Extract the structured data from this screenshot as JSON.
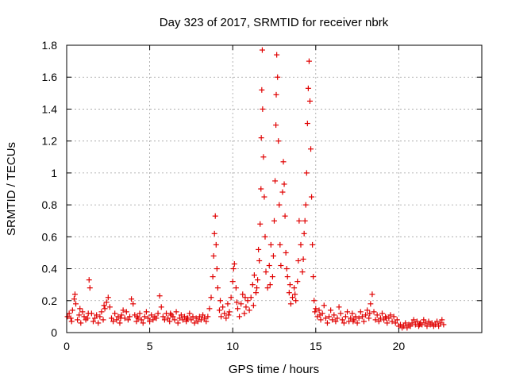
{
  "chart_data": {
    "type": "scatter",
    "title": "Day 323 of 2017, SRMTID for receiver nbrk",
    "xlabel": "GPS time / hours",
    "ylabel": "SRMTID / TECUs",
    "xlim": [
      0,
      25
    ],
    "ylim": [
      0,
      1.8
    ],
    "xticks": [
      0,
      5,
      10,
      15,
      20
    ],
    "xtick_labels": [
      "0",
      "5",
      "10",
      "15",
      "20"
    ],
    "yticks": [
      0,
      0.2,
      0.4,
      0.6,
      0.8,
      1,
      1.2,
      1.4,
      1.6,
      1.8
    ],
    "ytick_labels": [
      "0",
      "0.2",
      "0.4",
      "0.6",
      "0.8",
      "1",
      "1.2",
      "1.4",
      "1.6",
      "1.8"
    ],
    "grid": true,
    "marker": "+",
    "marker_color": "#e00000",
    "series": [
      {
        "name": "SRMTID",
        "points": [
          [
            0.05,
            0.1
          ],
          [
            0.15,
            0.12
          ],
          [
            0.25,
            0.09
          ],
          [
            0.35,
            0.14
          ],
          [
            0.45,
            0.21
          ],
          [
            0.5,
            0.24
          ],
          [
            0.55,
            0.18
          ],
          [
            0.65,
            0.08
          ],
          [
            0.75,
            0.11
          ],
          [
            0.85,
            0.06
          ],
          [
            0.95,
            0.13
          ],
          [
            1.05,
            0.1
          ],
          [
            1.15,
            0.08
          ],
          [
            1.25,
            0.09
          ],
          [
            1.35,
            0.33
          ],
          [
            1.4,
            0.28
          ],
          [
            1.5,
            0.12
          ],
          [
            1.6,
            0.07
          ],
          [
            1.7,
            0.09
          ],
          [
            1.8,
            0.11
          ],
          [
            1.9,
            0.06
          ],
          [
            2.0,
            0.1
          ],
          [
            2.1,
            0.13
          ],
          [
            2.2,
            0.08
          ],
          [
            2.3,
            0.15
          ],
          [
            2.4,
            0.19
          ],
          [
            2.5,
            0.22
          ],
          [
            2.6,
            0.16
          ],
          [
            2.7,
            0.09
          ],
          [
            2.8,
            0.07
          ],
          [
            2.9,
            0.12
          ],
          [
            3.0,
            0.08
          ],
          [
            3.1,
            0.1
          ],
          [
            3.2,
            0.06
          ],
          [
            3.3,
            0.11
          ],
          [
            3.4,
            0.14
          ],
          [
            3.5,
            0.09
          ],
          [
            3.6,
            0.13
          ],
          [
            3.7,
            0.08
          ],
          [
            3.8,
            0.1
          ],
          [
            3.9,
            0.21
          ],
          [
            4.0,
            0.18
          ],
          [
            4.1,
            0.11
          ],
          [
            4.2,
            0.07
          ],
          [
            4.3,
            0.09
          ],
          [
            4.4,
            0.12
          ],
          [
            4.5,
            0.08
          ],
          [
            4.6,
            0.06
          ],
          [
            4.7,
            0.1
          ],
          [
            4.8,
            0.13
          ],
          [
            4.9,
            0.09
          ],
          [
            5.0,
            0.07
          ],
          [
            5.1,
            0.11
          ],
          [
            5.2,
            0.08
          ],
          [
            5.3,
            0.1
          ],
          [
            5.4,
            0.09
          ],
          [
            5.5,
            0.12
          ],
          [
            5.6,
            0.23
          ],
          [
            5.7,
            0.16
          ],
          [
            5.8,
            0.1
          ],
          [
            5.9,
            0.08
          ],
          [
            6.0,
            0.12
          ],
          [
            6.1,
            0.09
          ],
          [
            6.2,
            0.07
          ],
          [
            6.3,
            0.11
          ],
          [
            6.4,
            0.1
          ],
          [
            6.5,
            0.08
          ],
          [
            6.6,
            0.13
          ],
          [
            6.7,
            0.06
          ],
          [
            6.8,
            0.09
          ],
          [
            6.9,
            0.11
          ],
          [
            7.0,
            0.08
          ],
          [
            7.1,
            0.1
          ],
          [
            7.2,
            0.07
          ],
          [
            7.3,
            0.09
          ],
          [
            7.4,
            0.12
          ],
          [
            7.5,
            0.08
          ],
          [
            7.6,
            0.1
          ],
          [
            7.7,
            0.06
          ],
          [
            7.8,
            0.09
          ],
          [
            7.9,
            0.07
          ],
          [
            8.0,
            0.1
          ],
          [
            8.1,
            0.08
          ],
          [
            8.2,
            0.11
          ],
          [
            8.3,
            0.09
          ],
          [
            8.4,
            0.07
          ],
          [
            8.5,
            0.1
          ],
          [
            8.6,
            0.15
          ],
          [
            8.7,
            0.22
          ],
          [
            8.8,
            0.35
          ],
          [
            8.85,
            0.48
          ],
          [
            8.9,
            0.62
          ],
          [
            8.95,
            0.73
          ],
          [
            9.0,
            0.55
          ],
          [
            9.05,
            0.4
          ],
          [
            9.1,
            0.28
          ],
          [
            9.2,
            0.14
          ],
          [
            9.3,
            0.1
          ],
          [
            9.4,
            0.16
          ],
          [
            9.5,
            0.12
          ],
          [
            9.6,
            0.09
          ],
          [
            9.7,
            0.18
          ],
          [
            9.8,
            0.13
          ],
          [
            9.9,
            0.22
          ],
          [
            10.0,
            0.32
          ],
          [
            10.05,
            0.4
          ],
          [
            10.1,
            0.43
          ],
          [
            10.2,
            0.28
          ],
          [
            10.3,
            0.15
          ],
          [
            10.4,
            0.1
          ],
          [
            10.5,
            0.18
          ],
          [
            10.6,
            0.24
          ],
          [
            10.7,
            0.12
          ],
          [
            10.8,
            0.16
          ],
          [
            10.9,
            0.2
          ],
          [
            11.0,
            0.14
          ],
          [
            11.1,
            0.22
          ],
          [
            11.2,
            0.3
          ],
          [
            11.3,
            0.36
          ],
          [
            11.4,
            0.25
          ],
          [
            11.5,
            0.33
          ],
          [
            11.55,
            0.52
          ],
          [
            11.6,
            0.45
          ],
          [
            11.65,
            0.68
          ],
          [
            11.7,
            0.9
          ],
          [
            11.72,
            1.22
          ],
          [
            11.75,
            1.52
          ],
          [
            11.78,
            1.77
          ],
          [
            11.8,
            1.4
          ],
          [
            11.85,
            1.1
          ],
          [
            11.9,
            0.85
          ],
          [
            11.95,
            0.6
          ],
          [
            12.0,
            0.38
          ],
          [
            12.1,
            0.28
          ],
          [
            12.2,
            0.42
          ],
          [
            12.3,
            0.55
          ],
          [
            12.4,
            0.35
          ],
          [
            12.5,
            0.7
          ],
          [
            12.55,
            0.95
          ],
          [
            12.6,
            1.3
          ],
          [
            12.62,
            1.49
          ],
          [
            12.65,
            1.74
          ],
          [
            12.7,
            1.6
          ],
          [
            12.75,
            1.2
          ],
          [
            12.8,
            0.8
          ],
          [
            12.85,
            0.55
          ],
          [
            12.9,
            0.42
          ],
          [
            13.0,
            0.88
          ],
          [
            13.05,
            1.07
          ],
          [
            13.1,
            0.93
          ],
          [
            13.15,
            0.73
          ],
          [
            13.2,
            0.5
          ],
          [
            13.3,
            0.35
          ],
          [
            13.4,
            0.25
          ],
          [
            13.5,
            0.18
          ],
          [
            13.6,
            0.22
          ],
          [
            13.7,
            0.28
          ],
          [
            13.8,
            0.2
          ],
          [
            13.9,
            0.32
          ],
          [
            14.0,
            0.7
          ],
          [
            14.1,
            0.55
          ],
          [
            14.2,
            0.38
          ],
          [
            14.3,
            0.62
          ],
          [
            14.4,
            0.8
          ],
          [
            14.45,
            1.0
          ],
          [
            14.5,
            1.31
          ],
          [
            14.55,
            1.53
          ],
          [
            14.6,
            1.7
          ],
          [
            14.65,
            1.45
          ],
          [
            14.7,
            1.15
          ],
          [
            14.75,
            0.85
          ],
          [
            14.8,
            0.55
          ],
          [
            14.85,
            0.35
          ],
          [
            14.9,
            0.2
          ],
          [
            15.0,
            0.15
          ],
          [
            15.1,
            0.1
          ],
          [
            15.2,
            0.14
          ],
          [
            15.3,
            0.08
          ],
          [
            15.4,
            0.12
          ],
          [
            15.5,
            0.17
          ],
          [
            15.6,
            0.09
          ],
          [
            15.7,
            0.06
          ],
          [
            15.8,
            0.1
          ],
          [
            15.9,
            0.14
          ],
          [
            16.0,
            0.08
          ],
          [
            16.1,
            0.11
          ],
          [
            16.2,
            0.07
          ],
          [
            16.3,
            0.09
          ],
          [
            16.4,
            0.16
          ],
          [
            16.5,
            0.12
          ],
          [
            16.6,
            0.08
          ],
          [
            16.7,
            0.06
          ],
          [
            16.8,
            0.1
          ],
          [
            16.9,
            0.13
          ],
          [
            17.0,
            0.07
          ],
          [
            17.1,
            0.09
          ],
          [
            17.2,
            0.12
          ],
          [
            17.3,
            0.08
          ],
          [
            17.4,
            0.1
          ],
          [
            17.5,
            0.06
          ],
          [
            17.6,
            0.09
          ],
          [
            17.7,
            0.13
          ],
          [
            17.8,
            0.1
          ],
          [
            17.9,
            0.07
          ],
          [
            18.0,
            0.11
          ],
          [
            18.1,
            0.14
          ],
          [
            18.2,
            0.09
          ],
          [
            18.3,
            0.18
          ],
          [
            18.4,
            0.24
          ],
          [
            18.5,
            0.13
          ],
          [
            18.6,
            0.08
          ],
          [
            18.7,
            0.11
          ],
          [
            18.8,
            0.07
          ],
          [
            18.9,
            0.09
          ],
          [
            19.0,
            0.12
          ],
          [
            19.1,
            0.08
          ],
          [
            19.2,
            0.1
          ],
          [
            19.3,
            0.06
          ],
          [
            19.4,
            0.09
          ],
          [
            19.5,
            0.11
          ],
          [
            19.6,
            0.07
          ],
          [
            19.7,
            0.1
          ],
          [
            19.8,
            0.06
          ],
          [
            19.9,
            0.08
          ],
          [
            20.0,
            0.04
          ],
          [
            20.1,
            0.05
          ],
          [
            20.2,
            0.03
          ],
          [
            20.3,
            0.04
          ],
          [
            20.4,
            0.06
          ],
          [
            20.5,
            0.03
          ],
          [
            20.6,
            0.05
          ],
          [
            20.7,
            0.04
          ],
          [
            20.8,
            0.06
          ],
          [
            20.9,
            0.08
          ],
          [
            21.0,
            0.05
          ],
          [
            21.1,
            0.07
          ],
          [
            21.2,
            0.04
          ],
          [
            21.3,
            0.06
          ],
          [
            21.4,
            0.05
          ],
          [
            21.5,
            0.08
          ],
          [
            21.6,
            0.06
          ],
          [
            21.7,
            0.04
          ],
          [
            21.8,
            0.07
          ],
          [
            21.9,
            0.05
          ],
          [
            22.0,
            0.06
          ],
          [
            22.1,
            0.04
          ],
          [
            22.2,
            0.05
          ],
          [
            22.3,
            0.07
          ],
          [
            22.4,
            0.04
          ],
          [
            22.5,
            0.06
          ],
          [
            22.6,
            0.08
          ],
          [
            22.7,
            0.05
          ],
          [
            0.3,
            0.07
          ],
          [
            0.8,
            0.15
          ],
          [
            1.3,
            0.12
          ],
          [
            2.25,
            0.17
          ],
          [
            3.25,
            0.09
          ],
          [
            4.25,
            0.1
          ],
          [
            6.25,
            0.12
          ],
          [
            7.25,
            0.09
          ],
          [
            9.25,
            0.2
          ],
          [
            9.75,
            0.11
          ],
          [
            10.25,
            0.19
          ],
          [
            10.75,
            0.22
          ],
          [
            11.25,
            0.17
          ],
          [
            11.45,
            0.28
          ],
          [
            12.25,
            0.3
          ],
          [
            12.45,
            0.48
          ],
          [
            13.25,
            0.4
          ],
          [
            13.45,
            0.3
          ],
          [
            13.75,
            0.24
          ],
          [
            13.95,
            0.45
          ],
          [
            14.25,
            0.46
          ],
          [
            14.35,
            0.7
          ],
          [
            14.95,
            0.13
          ],
          [
            15.25,
            0.11
          ],
          [
            17.25,
            0.07
          ],
          [
            18.25,
            0.12
          ],
          [
            19.25,
            0.09
          ],
          [
            21.25,
            0.05
          ]
        ]
      }
    ]
  }
}
